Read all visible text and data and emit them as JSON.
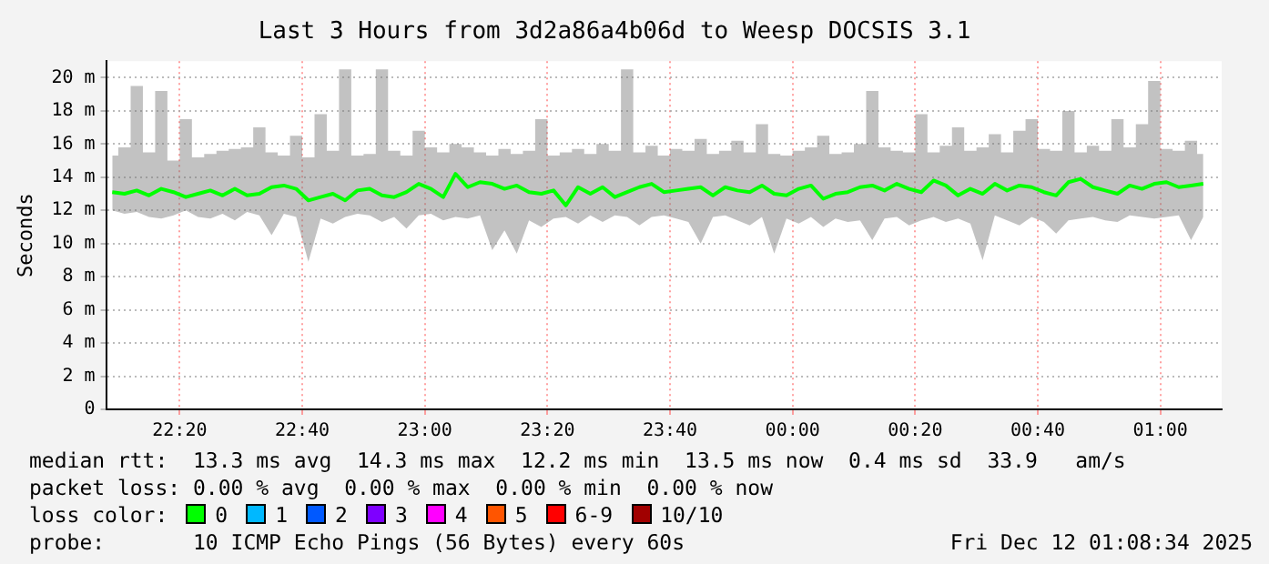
{
  "chart_data": {
    "type": "line",
    "title": "Last 3 Hours from 3d2a86a4b06d to Weesp DOCSIS 3.1",
    "ylabel": "Seconds",
    "x": [
      "2025-12-11T22:09",
      "2025-12-11T22:11",
      "2025-12-11T22:13",
      "2025-12-11T22:15",
      "2025-12-11T22:17",
      "2025-12-11T22:19",
      "2025-12-11T22:21",
      "2025-12-11T22:23",
      "2025-12-11T22:25",
      "2025-12-11T22:27",
      "2025-12-11T22:29",
      "2025-12-11T22:31",
      "2025-12-11T22:33",
      "2025-12-11T22:35",
      "2025-12-11T22:37",
      "2025-12-11T22:39",
      "2025-12-11T22:41",
      "2025-12-11T22:43",
      "2025-12-11T22:45",
      "2025-12-11T22:47",
      "2025-12-11T22:49",
      "2025-12-11T22:51",
      "2025-12-11T22:53",
      "2025-12-11T22:55",
      "2025-12-11T22:57",
      "2025-12-11T22:59",
      "2025-12-11T23:01",
      "2025-12-11T23:03",
      "2025-12-11T23:05",
      "2025-12-11T23:07",
      "2025-12-11T23:09",
      "2025-12-11T23:11",
      "2025-12-11T23:13",
      "2025-12-11T23:15",
      "2025-12-11T23:17",
      "2025-12-11T23:19",
      "2025-12-11T23:21",
      "2025-12-11T23:23",
      "2025-12-11T23:25",
      "2025-12-11T23:27",
      "2025-12-11T23:29",
      "2025-12-11T23:31",
      "2025-12-11T23:33",
      "2025-12-11T23:35",
      "2025-12-11T23:37",
      "2025-12-11T23:39",
      "2025-12-11T23:41",
      "2025-12-11T23:43",
      "2025-12-11T23:45",
      "2025-12-11T23:47",
      "2025-12-11T23:49",
      "2025-12-11T23:51",
      "2025-12-11T23:53",
      "2025-12-11T23:55",
      "2025-12-11T23:57",
      "2025-12-11T23:59",
      "2025-12-12T00:01",
      "2025-12-12T00:03",
      "2025-12-12T00:05",
      "2025-12-12T00:07",
      "2025-12-12T00:09",
      "2025-12-12T00:11",
      "2025-12-12T00:13",
      "2025-12-12T00:15",
      "2025-12-12T00:17",
      "2025-12-12T00:19",
      "2025-12-12T00:21",
      "2025-12-12T00:23",
      "2025-12-12T00:25",
      "2025-12-12T00:27",
      "2025-12-12T00:29",
      "2025-12-12T00:31",
      "2025-12-12T00:33",
      "2025-12-12T00:35",
      "2025-12-12T00:37",
      "2025-12-12T00:39",
      "2025-12-12T00:41",
      "2025-12-12T00:43",
      "2025-12-12T00:45",
      "2025-12-12T00:47",
      "2025-12-12T00:49",
      "2025-12-12T00:51",
      "2025-12-12T00:53",
      "2025-12-12T00:55",
      "2025-12-12T00:57",
      "2025-12-12T00:59",
      "2025-12-12T01:01",
      "2025-12-12T01:03",
      "2025-12-12T01:05",
      "2025-12-12T01:07"
    ],
    "series": [
      {
        "color": "#00ff00",
        "values": [
          13.1,
          13.0,
          13.2,
          12.9,
          13.3,
          13.1,
          12.8,
          13.0,
          13.2,
          12.9,
          13.3,
          12.9,
          13.0,
          13.4,
          13.5,
          13.3,
          12.6,
          12.8,
          13.0,
          12.6,
          13.2,
          13.3,
          12.9,
          12.8,
          13.1,
          13.6,
          13.3,
          12.8,
          14.2,
          13.4,
          13.7,
          13.6,
          13.3,
          13.5,
          13.1,
          13.0,
          13.2,
          12.3,
          13.4,
          13.0,
          13.4,
          12.8,
          13.1,
          13.4,
          13.6,
          13.1,
          13.2,
          13.3,
          13.4,
          12.9,
          13.4,
          13.2,
          13.1,
          13.5,
          13.0,
          12.9,
          13.3,
          13.5,
          12.7,
          13.0,
          13.1,
          13.4,
          13.5,
          13.2,
          13.6,
          13.3,
          13.1,
          13.8,
          13.5,
          12.9,
          13.3,
          13.0,
          13.6,
          13.2,
          13.5,
          13.4,
          13.1,
          12.9,
          13.7,
          13.9,
          13.4,
          13.2,
          13.0,
          13.5,
          13.3,
          13.6,
          13.7,
          13.4,
          13.5,
          13.6
        ],
        "lower": [
          12.0,
          11.8,
          11.9,
          11.6,
          11.5,
          11.7,
          12.0,
          11.6,
          11.5,
          11.8,
          11.4,
          11.9,
          11.7,
          10.5,
          11.8,
          11.6,
          8.9,
          11.5,
          11.2,
          11.6,
          11.8,
          11.7,
          11.3,
          11.6,
          10.9,
          11.7,
          11.8,
          11.4,
          11.6,
          11.5,
          11.7,
          9.6,
          10.8,
          9.4,
          11.4,
          11.0,
          11.5,
          11.6,
          11.2,
          11.7,
          11.3,
          11.7,
          11.6,
          11.1,
          11.6,
          11.7,
          11.5,
          11.3,
          10.0,
          11.6,
          11.7,
          11.4,
          11.1,
          11.6,
          9.4,
          11.5,
          11.2,
          11.6,
          11.0,
          11.5,
          11.3,
          11.4,
          10.2,
          11.5,
          11.6,
          11.1,
          11.4,
          11.6,
          11.3,
          11.5,
          11.2,
          9.0,
          11.7,
          11.4,
          11.1,
          11.6,
          11.3,
          10.6,
          11.4,
          11.5,
          11.6,
          11.4,
          11.3,
          11.7,
          11.6,
          11.5,
          11.6,
          11.7,
          10.2,
          11.6
        ],
        "upper": [
          15.3,
          15.8,
          19.5,
          15.5,
          19.2,
          15.0,
          17.5,
          15.2,
          15.4,
          15.6,
          15.7,
          15.8,
          17.0,
          15.5,
          15.3,
          16.5,
          15.2,
          17.8,
          15.6,
          20.5,
          15.3,
          15.4,
          20.5,
          15.6,
          15.3,
          16.8,
          15.8,
          15.5,
          16.0,
          15.8,
          15.5,
          15.3,
          15.7,
          15.4,
          15.6,
          17.5,
          15.3,
          15.5,
          15.7,
          15.4,
          16.0,
          15.6,
          20.5,
          15.5,
          15.9,
          15.3,
          15.7,
          15.6,
          16.3,
          15.4,
          15.6,
          16.2,
          15.5,
          17.2,
          15.4,
          15.3,
          15.6,
          15.8,
          16.5,
          15.4,
          15.5,
          16.0,
          19.2,
          15.8,
          15.6,
          15.5,
          17.8,
          15.5,
          15.9,
          17.0,
          15.6,
          15.8,
          16.6,
          15.5,
          16.8,
          17.5,
          15.7,
          15.6,
          18.0,
          15.5,
          15.9,
          15.6,
          17.5,
          15.8,
          17.2,
          19.8,
          15.7,
          15.6,
          16.2,
          15.4
        ]
      }
    ],
    "xlim": [
      "2025-12-11T22:08",
      "2025-12-12T01:10"
    ],
    "xticks": [
      {
        "value": "2025-12-11T22:20",
        "label": "22:20"
      },
      {
        "value": "2025-12-11T22:40",
        "label": "22:40"
      },
      {
        "value": "2025-12-11T23:00",
        "label": "23:00"
      },
      {
        "value": "2025-12-11T23:20",
        "label": "23:20"
      },
      {
        "value": "2025-12-11T23:40",
        "label": "23:40"
      },
      {
        "value": "2025-12-12T00:00",
        "label": "00:00"
      },
      {
        "value": "2025-12-12T00:20",
        "label": "00:20"
      },
      {
        "value": "2025-12-12T00:40",
        "label": "00:40"
      },
      {
        "value": "2025-12-12T01:00",
        "label": "01:00"
      }
    ],
    "ylim": [
      0,
      21
    ],
    "yticks": [
      0,
      {
        "value": 2,
        "label": "2 m"
      },
      {
        "value": 4,
        "label": "4 m"
      },
      {
        "value": 6,
        "label": "6 m"
      },
      {
        "value": 8,
        "label": "8 m"
      },
      {
        "value": 10,
        "label": "10 m"
      },
      {
        "value": 12,
        "label": "12 m"
      },
      {
        "value": 14,
        "label": "14 m"
      },
      {
        "value": 16,
        "label": "16 m"
      },
      {
        "value": 18,
        "label": "18 m"
      },
      {
        "value": 20,
        "label": "20 m"
      }
    ],
    "grid": true,
    "marker": "none",
    "line_style": "solid",
    "annotations": [
      "median rtt:  13.3 ms avg  14.3 ms max  12.2 ms min  13.5 ms now  0.4 ms sd  33.9   am/s",
      "packet loss: 0.00 % avg  0.00 % max  0.00 % min  0.00 % now",
      "loss color:",
      "0",
      "1",
      "2",
      "3",
      "4",
      "5",
      "6-9",
      "10/10",
      "probe:       10 ICMP Echo Pings (56 Bytes) every 60s",
      "Fri Dec 12 01:08:34 2025"
    ]
  }
}
